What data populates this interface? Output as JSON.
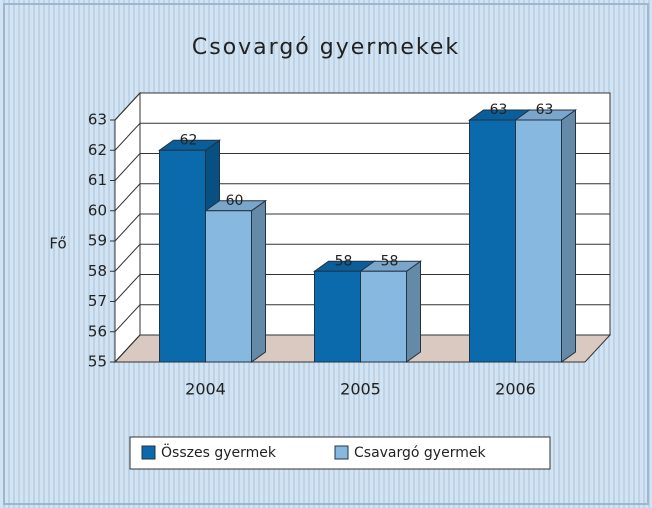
{
  "chart_data": {
    "type": "bar3d",
    "title": "Csovargó gyermekek",
    "y_label": "Fő",
    "categories": [
      "2004",
      "2005",
      "2006"
    ],
    "series": [
      {
        "name": "Összes gyermek",
        "color": "#0b6aac",
        "values": [
          62,
          58,
          63
        ]
      },
      {
        "name": "Csavargó gyermek",
        "color": "#86b8e0",
        "values": [
          60,
          58,
          63
        ]
      }
    ],
    "ylim": [
      55,
      63
    ],
    "yticks": [
      55,
      56,
      57,
      58,
      59,
      60,
      61,
      62,
      63
    ],
    "grid": true,
    "legend": "bottom"
  }
}
